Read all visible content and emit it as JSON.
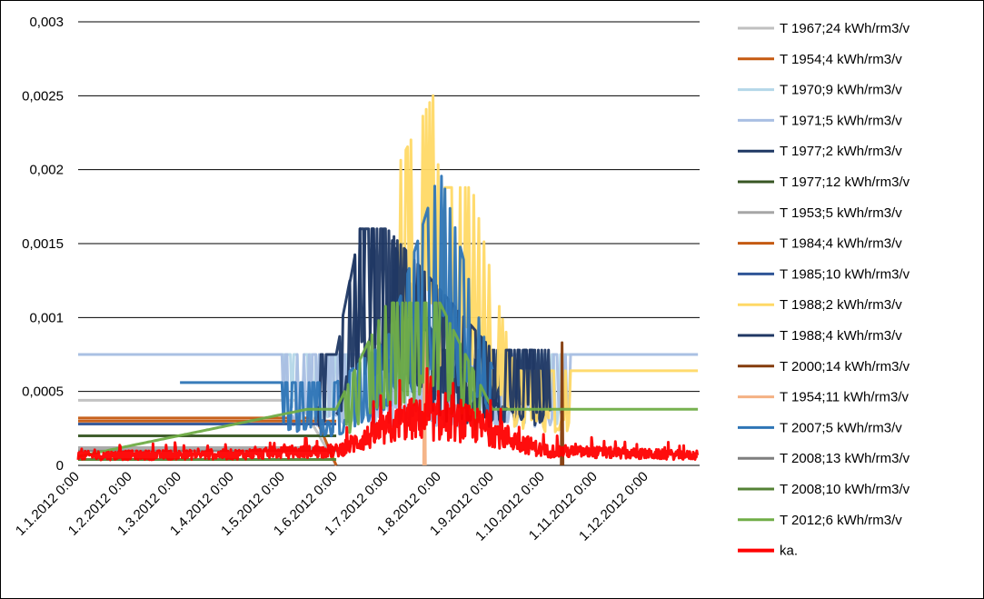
{
  "chart_data": {
    "type": "line",
    "ylim": [
      0,
      0.003
    ],
    "y_ticks": [
      "0",
      "0,0005",
      "0,001",
      "0,0015",
      "0,002",
      "0,0025",
      "0,003"
    ],
    "y_tick_values": [
      0,
      0.0005,
      0.001,
      0.0015,
      0.002,
      0.0025,
      0.003
    ],
    "x_range": [
      "1.1.2012 0:00",
      "31.12.2012 23:00"
    ],
    "x_ticks": [
      "1.1.2012 0:00",
      "1.2.2012 0:00",
      "1.3.2012 0:00",
      "1.4.2012 0:00",
      "1.5.2012 0:00",
      "1.6.2012 0:00",
      "1.7.2012 0:00",
      "1.8.2012 0:00",
      "1.9.2012 0:00",
      "1.10.2012 0:00",
      "1.11.2012 0:00",
      "1.12.2012 0:00"
    ],
    "x_tick_days": [
      0,
      31,
      60,
      91,
      121,
      152,
      182,
      213,
      244,
      274,
      305,
      335
    ],
    "grid": "horizontal",
    "legend_position": "right",
    "series": [
      {
        "name": "T 1967;24 kWh/rm3/v",
        "color": "#c0c0c0",
        "x": [
          "1.1.2012",
          "1.4.2012",
          "10.5.2012",
          "1.6.2012"
        ],
        "values": [
          0.00044,
          0.00044,
          0.00044,
          0.0
        ]
      },
      {
        "name": "T 1954;4 kWh/rm3/v",
        "color": "#c55a11",
        "x": [
          "1.1.2012",
          "15.3.2012",
          "20.5.2012",
          "1.6.2012"
        ],
        "values": [
          0.00032,
          0.00032,
          0.00032,
          0.0
        ]
      },
      {
        "name": "T 1970;9 kWh/rm3/v",
        "color": "#b4d7e8",
        "x": [
          "1.1.2012",
          "31.12.2012"
        ],
        "values": [
          0.00075,
          0.00075
        ]
      },
      {
        "name": "T 1971;5 kWh/rm3/v",
        "color": "#a9bfe3",
        "x": [
          "1.1.2012",
          "31.12.2012"
        ],
        "values": [
          0.00075,
          0.00075
        ]
      },
      {
        "name": "T 1977;2 kWh/rm3/v",
        "color": "#1f3864",
        "x": [
          "1.6.2012",
          "15.6.2012",
          "1.7.2012",
          "1.8.2012",
          "1.9.2012",
          "1.10.2012"
        ],
        "values": [
          0.00078,
          0.0016,
          0.0016,
          0.00078,
          0.00078,
          0.00078
        ]
      },
      {
        "name": "T 1977;12 kWh/rm3/v",
        "color": "#375623",
        "x": [
          "1.1.2012",
          "1.6.2012"
        ],
        "values": [
          0.0002,
          0.0002
        ]
      },
      {
        "name": "T 1953;5 kWh/rm3/v",
        "color": "#a6a6a6",
        "x": [
          "1.1.2012",
          "1.6.2012"
        ],
        "values": [
          0.00012,
          0.00012
        ]
      },
      {
        "name": "T 1984;4 kWh/rm3/v",
        "color": "#c55a11",
        "x": [
          "1.1.2012",
          "1.6.2012"
        ],
        "values": [
          0.0003,
          0.0003
        ]
      },
      {
        "name": "T 1985;10 kWh/rm3/v",
        "color": "#2f5597",
        "x": [
          "1.1.2012",
          "1.6.2012"
        ],
        "values": [
          0.00028,
          0.00028
        ]
      },
      {
        "name": "T 1988;2 kWh/rm3/v",
        "color": "#ffd966",
        "x": [
          "1.7.2012",
          "28.7.2012",
          "1.8.2012",
          "20.8.2012",
          "1.9.2012",
          "15.9.2012",
          "31.12.2012"
        ],
        "values": [
          0.00188,
          0.0025,
          0.00188,
          0.00188,
          0.00125,
          0.00064,
          0.00064
        ]
      },
      {
        "name": "T 1988;4 kWh/rm3/v",
        "color": "#203864",
        "x": [
          "20.5.2012",
          "1.6.2012",
          "15.6.2012",
          "1.7.2012",
          "1.9.2012",
          "5.10.2012"
        ],
        "values": [
          0.00075,
          0.00075,
          0.0016,
          0.0016,
          0.00078,
          0.00078
        ]
      },
      {
        "name": "T 2000;14 kWh/rm3/v",
        "color": "#843c0c",
        "x": [
          "12.10.2012"
        ],
        "values": [
          0.00083
        ]
      },
      {
        "name": "T 1954;11 kWh/rm3/v",
        "color": "#f4b183",
        "x": [
          "23.7.2012"
        ],
        "values": [
          0.0009
        ]
      },
      {
        "name": "T 2007;5 kWh/rm3/v",
        "color": "#2e75b6",
        "x": [
          "1.3.2012",
          "1.6.2012",
          "1.7.2012",
          "1.8.2012",
          "1.9.2012"
        ],
        "values": [
          0.00056,
          0.00056,
          0.00085,
          0.002,
          0.00065
        ]
      },
      {
        "name": "T 2008;13 kWh/rm3/v",
        "color": "#7f7f7f",
        "x": [
          "1.1.2012",
          "1.6.2012"
        ],
        "values": [
          0.0001,
          0.0001
        ]
      },
      {
        "name": "T 2008;10 kWh/rm3/v",
        "color": "#548235",
        "x": [
          "1.1.2012",
          "1.6.2012"
        ],
        "values": [
          4e-05,
          4e-05
        ]
      },
      {
        "name": "T 2012;6 kWh/rm3/v",
        "color": "#70ad47",
        "x": [
          "1.1.2012",
          "15.5.2012",
          "1.6.2012",
          "1.7.2012",
          "1.8.2012",
          "1.9.2012",
          "31.12.2012"
        ],
        "values": [
          6e-05,
          0.00038,
          0.00038,
          0.0011,
          0.0011,
          0.00038,
          0.00038
        ]
      },
      {
        "name": "ka.",
        "color": "#ff0000",
        "x": [
          "1.1.2012",
          "1.4.2012",
          "1.6.2012",
          "15.7.2012",
          "20.8.2012",
          "1.10.2012",
          "31.12.2012"
        ],
        "values": [
          8e-05,
          9e-05,
          0.00012,
          0.00038,
          0.00034,
          0.00012,
          8e-05
        ]
      }
    ]
  }
}
